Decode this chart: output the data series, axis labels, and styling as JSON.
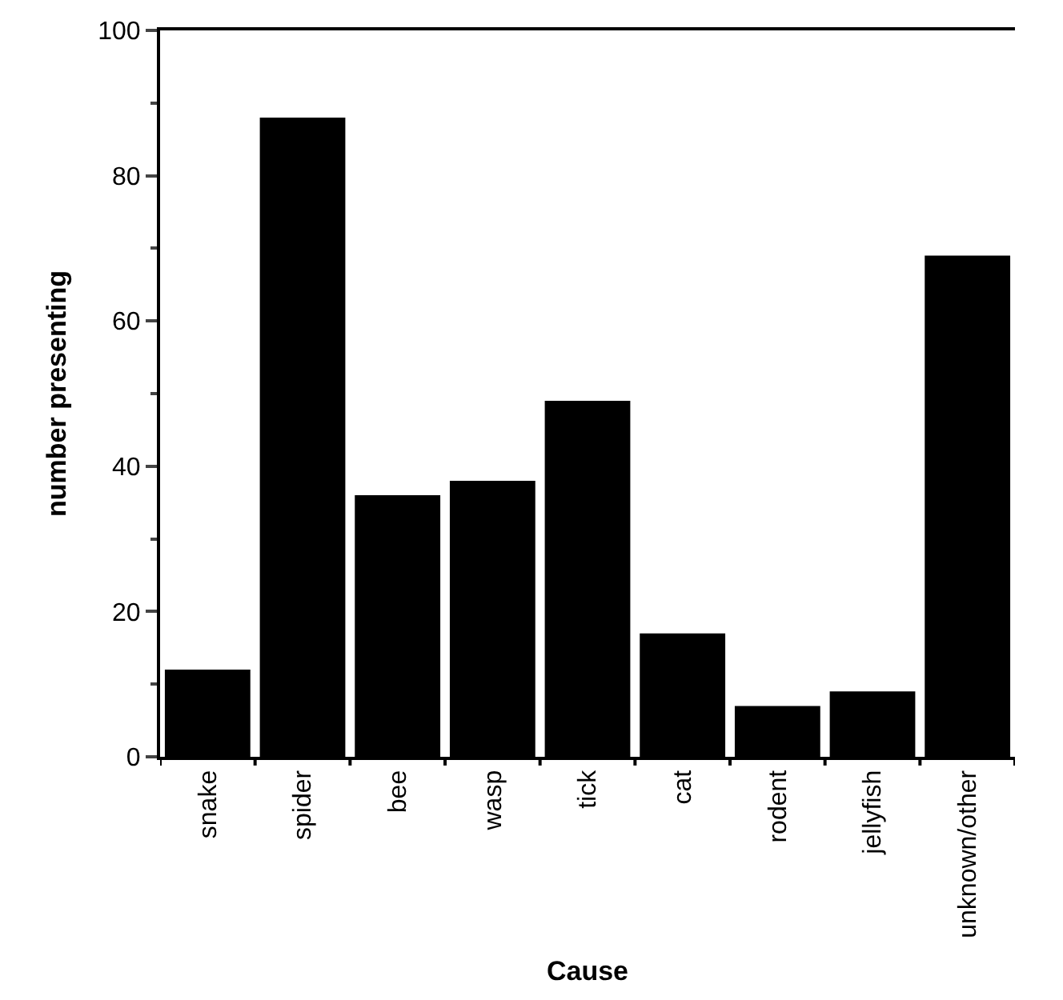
{
  "chart_data": {
    "type": "bar",
    "xlabel": "Cause",
    "ylabel": "number presenting",
    "categories": [
      "snake",
      "spider",
      "bee",
      "wasp",
      "tick",
      "cat",
      "rodent",
      "jellyfish",
      "unknown/other"
    ],
    "values": [
      12,
      88,
      36,
      38,
      49,
      17,
      7,
      9,
      69
    ],
    "color": "#000000",
    "ylim": [
      0,
      100
    ],
    "yticks": [
      0,
      20,
      40,
      60,
      80,
      100
    ]
  }
}
